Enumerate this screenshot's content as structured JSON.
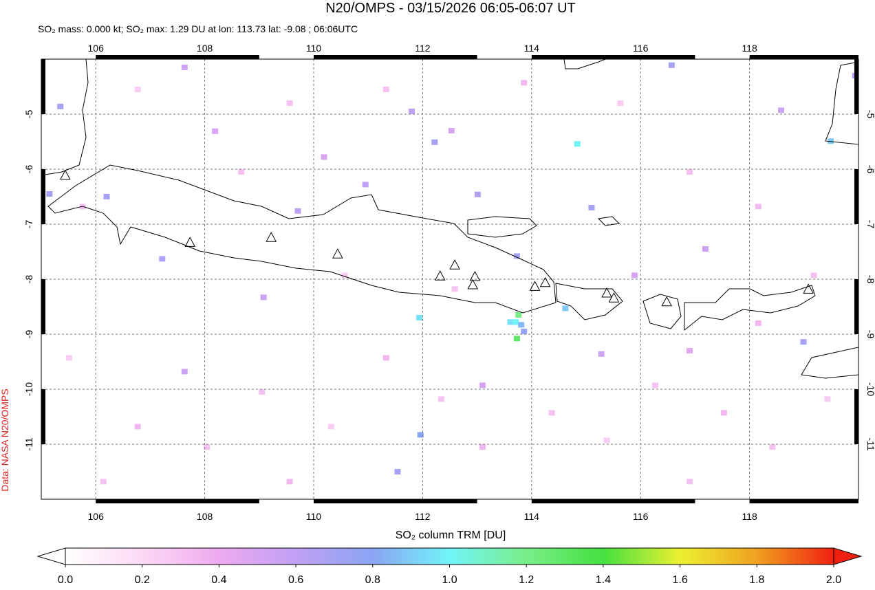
{
  "chart_data": {
    "type": "map",
    "title": "N20/OMPS - 03/15/2026 06:05-06:07 UT",
    "subtitle": "SO₂ mass: 0.000 kt; SO₂ max: 1.29 DU at lon: 113.73 lat: -9.08 ; 06:06UTC",
    "source": "Data: NASA N20/OMPS",
    "xlim": [
      105,
      120
    ],
    "ylim": [
      -12,
      -4
    ],
    "xticks": [
      106,
      108,
      110,
      112,
      114,
      116,
      118
    ],
    "yticks": [
      -5,
      -6,
      -7,
      -8,
      -9,
      -10,
      -11
    ],
    "grid": true,
    "points": {
      "lon": [
        113.73,
        113.76,
        113.61,
        113.71,
        113.81,
        113.86,
        114.62,
        114.84,
        111.94,
        119.49,
        111.96,
        105.35,
        106.2,
        105.15,
        107.22,
        109.08,
        110.95,
        113.01,
        112.22,
        111.8,
        113.73,
        116.57,
        118.99,
        111.54,
        115.1,
        107.63,
        119.94,
        118.58,
        117.19,
        115.28,
        109.71,
        108.19,
        110.19,
        112.53,
        113.1,
        107.63,
        115.89,
        116.9,
        105.76,
        106.77,
        108.67,
        109.56,
        110.57,
        111.33,
        112.34,
        113.1,
        114.37,
        115.38,
        116.27,
        117.53,
        118.42,
        119.43,
        119.18,
        118.16,
        116.9,
        115.63,
        113.86,
        111.33,
        108.04,
        106.77,
        105.51,
        109.05,
        110.32,
        106.14,
        109.56,
        116.9,
        118.16,
        112.59
      ],
      "lat": [
        -9.08,
        -8.65,
        -8.78,
        -8.78,
        -8.83,
        -8.95,
        -8.53,
        -5.54,
        -8.7,
        -5.49,
        -10.83,
        -4.86,
        -6.5,
        -6.45,
        -7.63,
        -8.33,
        -6.28,
        -6.46,
        -5.51,
        -4.95,
        -7.58,
        -4.11,
        -9.14,
        -11.5,
        -6.7,
        -4.15,
        -4.3,
        -4.93,
        -7.45,
        -9.36,
        -6.76,
        -5.31,
        -5.78,
        -5.3,
        -9.93,
        -9.68,
        -7.93,
        -9.3,
        -6.68,
        -4.55,
        -6.05,
        -4.8,
        -7.93,
        -9.43,
        -10.18,
        -11.05,
        -10.43,
        -10.93,
        -9.93,
        -10.43,
        -11.05,
        -10.18,
        -7.93,
        -6.68,
        -6.05,
        -4.8,
        -4.43,
        -4.55,
        -11.05,
        -10.68,
        -9.43,
        -10.05,
        -10.68,
        -11.68,
        -11.68,
        -11.68,
        -8.8,
        -8.18
      ],
      "values": [
        1.29,
        1.2,
        0.95,
        1.0,
        0.85,
        0.75,
        0.9,
        1.0,
        0.95,
        0.9,
        0.8,
        0.7,
        0.7,
        0.7,
        0.65,
        0.55,
        0.6,
        0.65,
        0.7,
        0.6,
        0.7,
        0.7,
        0.7,
        0.7,
        0.7,
        0.55,
        0.6,
        0.55,
        0.55,
        0.55,
        0.6,
        0.5,
        0.5,
        0.5,
        0.5,
        0.55,
        0.5,
        0.45,
        0.3,
        0.25,
        0.3,
        0.3,
        0.25,
        0.35,
        0.3,
        0.35,
        0.3,
        0.25,
        0.3,
        0.35,
        0.3,
        0.25,
        0.3,
        0.35,
        0.3,
        0.25,
        0.35,
        0.3,
        0.3,
        0.35,
        0.25,
        0.3,
        0.25,
        0.3,
        0.35,
        0.3,
        0.35,
        0.3
      ]
    },
    "volcanoes": {
      "lon": [
        105.44,
        107.73,
        109.22,
        110.44,
        112.32,
        112.59,
        112.96,
        112.92,
        114.06,
        114.25,
        115.38,
        115.51,
        116.48,
        119.08
      ],
      "lat": [
        -6.11,
        -7.33,
        -7.24,
        -7.54,
        -7.94,
        -7.74,
        -7.95,
        -8.1,
        -8.13,
        -8.06,
        -8.25,
        -8.34,
        -8.41,
        -8.18
      ]
    },
    "colorbar": {
      "label": "SO₂ column TRM [DU]",
      "range": [
        0,
        2
      ],
      "ticks": [
        {
          "value": 0,
          "label": "0.0"
        },
        {
          "value": 0.2,
          "label": "0.2"
        },
        {
          "value": 0.4,
          "label": "0.4"
        },
        {
          "value": 0.6,
          "label": "0.6"
        },
        {
          "value": 0.8,
          "label": "0.8"
        },
        {
          "value": 1,
          "label": "1.0"
        },
        {
          "value": 1.2,
          "label": "1.2"
        },
        {
          "value": 1.4,
          "label": "1.4"
        },
        {
          "value": 1.6,
          "label": "1.6"
        },
        {
          "value": 1.8,
          "label": "1.8"
        },
        {
          "value": 2,
          "label": "2.0"
        }
      ],
      "colors": [
        "#ffffff",
        "#fcd8f4",
        "#eeaaf0",
        "#c0a0f4",
        "#8aa4f4",
        "#70f4f8",
        "#78ee88",
        "#44e040",
        "#ecf030",
        "#f0a020",
        "#f02010"
      ]
    }
  }
}
